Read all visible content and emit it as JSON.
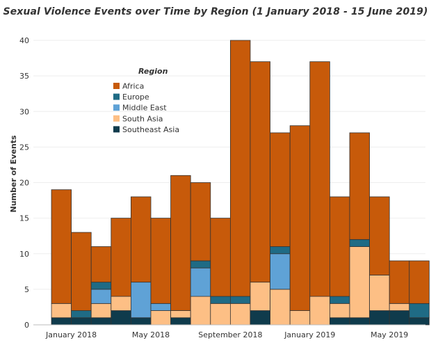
{
  "chart_data": {
    "type": "bar",
    "stacked": true,
    "title": "Sexual Violence Events over Time by Region (1 January 2018 - 15 June 2019)",
    "xlabel": "",
    "ylabel": "Number of Events",
    "ylim": [
      0,
      40
    ],
    "yticks": [
      0,
      5,
      10,
      15,
      20,
      25,
      30,
      35,
      40
    ],
    "grid": true,
    "legend_position": "top-left",
    "legend_title": "Region",
    "x_tick_labels": [
      {
        "index": 1,
        "label": "January 2018"
      },
      {
        "index": 5,
        "label": "May 2018"
      },
      {
        "index": 9,
        "label": "September 2018"
      },
      {
        "index": 13,
        "label": "January 2019"
      },
      {
        "index": 17,
        "label": "May 2019"
      }
    ],
    "periods": 20,
    "series": [
      {
        "name": "Southeast Asia",
        "color": "#0f3b4c",
        "values": [
          1,
          1,
          1,
          2,
          1,
          0,
          1,
          0,
          0,
          0,
          2,
          0,
          0,
          0,
          1,
          1,
          2,
          2,
          1,
          0
        ]
      },
      {
        "name": "South Asia",
        "color": "#fdbf85",
        "values": [
          2,
          0,
          2,
          2,
          0,
          2,
          1,
          4,
          3,
          3,
          4,
          5,
          2,
          4,
          2,
          10,
          5,
          1,
          0,
          0
        ]
      },
      {
        "name": "Middle East",
        "color": "#5fa2d6",
        "values": [
          0,
          0,
          2,
          0,
          5,
          1,
          0,
          4,
          0,
          0,
          0,
          5,
          0,
          0,
          0,
          0,
          0,
          0,
          0,
          0
        ]
      },
      {
        "name": "Europe",
        "color": "#1f6b85",
        "values": [
          0,
          1,
          1,
          0,
          0,
          0,
          0,
          1,
          1,
          1,
          0,
          1,
          0,
          0,
          1,
          1,
          0,
          0,
          2,
          0
        ]
      },
      {
        "name": "Africa",
        "color": "#c75a0a",
        "values": [
          16,
          11,
          5,
          11,
          12,
          12,
          19,
          11,
          11,
          36,
          31,
          16,
          26,
          33,
          14,
          15,
          11,
          6,
          6,
          0
        ]
      }
    ]
  }
}
